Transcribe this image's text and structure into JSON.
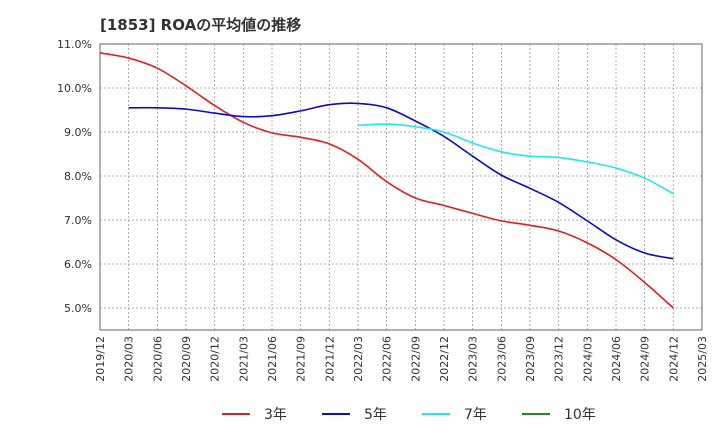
{
  "chart_data": {
    "type": "line",
    "title": "[1853]  ROAの平均値の推移",
    "xlabel": "",
    "ylabel": "",
    "x_ticks": [
      "2019/12",
      "2020/03",
      "2020/06",
      "2020/09",
      "2020/12",
      "2021/03",
      "2021/06",
      "2021/09",
      "2021/12",
      "2022/03",
      "2022/06",
      "2022/09",
      "2022/12",
      "2023/03",
      "2023/06",
      "2023/09",
      "2023/12",
      "2024/03",
      "2024/06",
      "2024/09",
      "2024/12",
      "2025/03"
    ],
    "y_ticks": [
      "11.0%",
      "10.0%",
      "9.0%",
      "8.0%",
      "7.0%",
      "6.0%",
      "5.0%"
    ],
    "ylim": [
      4.5,
      11.0
    ],
    "grid": true,
    "legend_position": "bottom",
    "series": [
      {
        "name": "3年",
        "color": "#e02020",
        "x": [
          "2019/12",
          "2020/03",
          "2020/06",
          "2020/09",
          "2020/12",
          "2021/03",
          "2021/06",
          "2021/09",
          "2021/12",
          "2022/03",
          "2022/06",
          "2022/09",
          "2022/12",
          "2023/03",
          "2023/06",
          "2023/09",
          "2023/12",
          "2024/03",
          "2024/06",
          "2024/09",
          "2024/12"
        ],
        "values": [
          10.8,
          10.68,
          10.45,
          10.05,
          9.6,
          9.22,
          8.98,
          8.88,
          8.73,
          8.38,
          7.87,
          7.5,
          7.33,
          7.15,
          6.98,
          6.88,
          6.75,
          6.48,
          6.1,
          5.58,
          5.0
        ]
      },
      {
        "name": "5年",
        "color": "#0a0ad0",
        "x": [
          "2020/03",
          "2020/06",
          "2020/09",
          "2020/12",
          "2021/03",
          "2021/06",
          "2021/09",
          "2021/12",
          "2022/03",
          "2022/06",
          "2022/09",
          "2022/12",
          "2023/03",
          "2023/06",
          "2023/09",
          "2023/12",
          "2024/03",
          "2024/06",
          "2024/09",
          "2024/12"
        ],
        "values": [
          9.55,
          9.55,
          9.52,
          9.43,
          9.35,
          9.37,
          9.48,
          9.62,
          9.65,
          9.55,
          9.25,
          8.9,
          8.45,
          8.02,
          7.72,
          7.4,
          6.98,
          6.55,
          6.25,
          6.12
        ]
      },
      {
        "name": "7年",
        "color": "#20e8f0",
        "x": [
          "2022/03",
          "2022/06",
          "2022/09",
          "2022/12",
          "2023/03",
          "2023/06",
          "2023/09",
          "2023/12",
          "2024/03",
          "2024/06",
          "2024/09",
          "2024/12"
        ],
        "values": [
          9.15,
          9.18,
          9.12,
          9.0,
          8.75,
          8.55,
          8.45,
          8.42,
          8.32,
          8.18,
          7.95,
          7.6
        ]
      },
      {
        "name": "10年",
        "color": "#228822",
        "x": [],
        "values": []
      }
    ]
  }
}
